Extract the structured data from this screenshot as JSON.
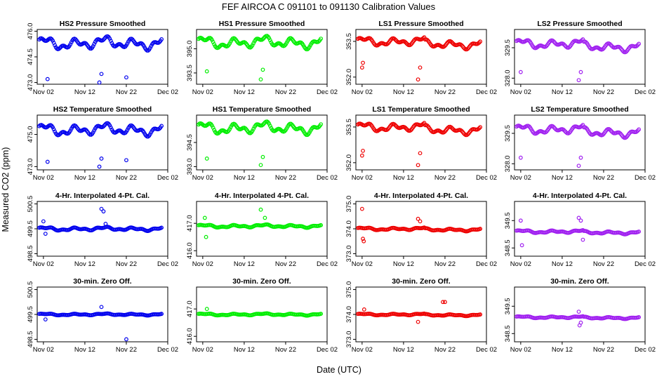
{
  "figure": {
    "title": "FEF   AIRCOA C   091101 to 091130   Calibration Values",
    "xlabel": "Date (UTC)",
    "ylabel": "Measured CO2 (ppm)"
  },
  "x_tick_labels": [
    "Nov 02",
    "Nov 12",
    "Nov 22",
    "Dec 02"
  ],
  "colors": {
    "HS2": "#0000ee",
    "HS1": "#00ee00",
    "LS1": "#ee0000",
    "LS2": "#a020f0"
  },
  "chart_data": [
    {
      "id": "hs2-pressure",
      "type": "scatter",
      "title": "HS2 Pressure Smoothed",
      "series": "HS2",
      "ylim": [
        472.9,
        476.1
      ],
      "yticks": [
        "473.0",
        "474.5",
        "476.0"
      ],
      "base": 475.3,
      "amp": 0.4,
      "outliers": [
        [
          2,
          473.2
        ],
        [
          14.5,
          473.0
        ],
        [
          15,
          473.5
        ],
        [
          21,
          473.3
        ]
      ]
    },
    {
      "id": "hs1-pressure",
      "type": "scatter",
      "title": "HS1 Pressure Smoothed",
      "series": "HS1",
      "ylim": [
        392.8,
        396.2
      ],
      "yticks": [
        "393.5",
        "395.0"
      ],
      "base": 395.4,
      "amp": 0.4,
      "outliers": [
        [
          2,
          393.6
        ],
        [
          15,
          393.1
        ],
        [
          15.5,
          393.7
        ]
      ]
    },
    {
      "id": "ls1-pressure",
      "type": "scatter",
      "title": "LS1 Pressure Smoothed",
      "series": "LS1",
      "ylim": [
        351.7,
        354.0
      ],
      "yticks": [
        "352.0",
        "353.5"
      ],
      "base": 353.5,
      "amp": 0.2,
      "outliers": [
        [
          1,
          352.4
        ],
        [
          1.2,
          352.6
        ],
        [
          14.5,
          351.9
        ],
        [
          15,
          352.4
        ]
      ]
    },
    {
      "id": "ls2-pressure",
      "type": "scatter",
      "title": "LS2 Pressure Smoothed",
      "series": "LS2",
      "ylim": [
        327.7,
        330.4
      ],
      "yticks": [
        "328.0",
        "329.5"
      ],
      "base": 329.7,
      "amp": 0.25,
      "outliers": [
        [
          1,
          328.3
        ],
        [
          15,
          327.9
        ],
        [
          15.5,
          328.3
        ]
      ]
    },
    {
      "id": "hs2-temperature",
      "type": "scatter",
      "title": "HS2 Temperature Smoothed",
      "series": "HS2",
      "ylim": [
        472.8,
        476.2
      ],
      "yticks": [
        "473.0",
        "475.0"
      ],
      "base": 475.3,
      "amp": 0.4,
      "outliers": [
        [
          2,
          473.3
        ],
        [
          14.5,
          473.0
        ],
        [
          15,
          473.5
        ],
        [
          21,
          473.4
        ]
      ]
    },
    {
      "id": "hs1-temperature",
      "type": "scatter",
      "title": "HS1 Temperature Smoothed",
      "series": "HS1",
      "ylim": [
        392.8,
        396.2
      ],
      "yticks": [
        "393.0",
        "394.5"
      ],
      "base": 395.4,
      "amp": 0.4,
      "outliers": [
        [
          2,
          393.5
        ],
        [
          15,
          393.1
        ],
        [
          15.5,
          393.6
        ]
      ]
    },
    {
      "id": "ls1-temperature",
      "type": "scatter",
      "title": "LS1 Temperature Smoothed",
      "series": "LS1",
      "ylim": [
        351.7,
        354.0
      ],
      "yticks": [
        "352.0",
        "353.5"
      ],
      "base": 353.5,
      "amp": 0.2,
      "outliers": [
        [
          1,
          352.3
        ],
        [
          1.2,
          352.5
        ],
        [
          14.5,
          351.9
        ],
        [
          15,
          352.4
        ]
      ]
    },
    {
      "id": "ls2-temperature",
      "type": "scatter",
      "title": "LS2 Temperature Smoothed",
      "series": "LS2",
      "ylim": [
        327.7,
        330.4
      ],
      "yticks": [
        "328.0",
        "329.5"
      ],
      "base": 329.7,
      "amp": 0.25,
      "outliers": [
        [
          1,
          328.3
        ],
        [
          15,
          327.9
        ],
        [
          15.5,
          328.3
        ]
      ]
    },
    {
      "id": "hs2-interp",
      "type": "scatter",
      "title": "4-Hr. Interpolated 4-Pt. Cal.",
      "series": "HS2",
      "ylim": [
        498.4,
        500.6
      ],
      "yticks": [
        "498.5",
        "499.5",
        "500.5"
      ],
      "base": 499.5,
      "amp": 0.08,
      "outliers": [
        [
          1,
          499.8
        ],
        [
          1.5,
          499.3
        ],
        [
          15,
          500.3
        ],
        [
          15.5,
          500.2
        ],
        [
          16,
          499.7
        ]
      ]
    },
    {
      "id": "hs1-interp",
      "type": "scatter",
      "title": "4-Hr. Interpolated 4-Pt. Cal.",
      "series": "HS1",
      "ylim": [
        415.8,
        417.8
      ],
      "yticks": [
        "416.0",
        "417.0"
      ],
      "base": 416.9,
      "amp": 0.06,
      "outliers": [
        [
          1.5,
          417.2
        ],
        [
          1.8,
          416.5
        ],
        [
          15,
          417.5
        ],
        [
          16,
          417.2
        ]
      ]
    },
    {
      "id": "ls1-interp",
      "type": "scatter",
      "title": "4-Hr. Interpolated 4-Pt. Cal.",
      "series": "LS1",
      "ylim": [
        372.9,
        375.1
      ],
      "yticks": [
        "373.0",
        "374.0",
        "375.0"
      ],
      "base": 374.0,
      "amp": 0.06,
      "outliers": [
        [
          1,
          374.8
        ],
        [
          1.2,
          373.6
        ],
        [
          1.4,
          373.5
        ],
        [
          14.5,
          374.4
        ],
        [
          15,
          374.3
        ]
      ]
    },
    {
      "id": "ls2-interp",
      "type": "scatter",
      "title": "4-Hr. Interpolated 4-Pt. Cal.",
      "series": "LS2",
      "ylim": [
        348.2,
        350.2
      ],
      "yticks": [
        "348.5",
        "349.5"
      ],
      "base": 349.1,
      "amp": 0.06,
      "outliers": [
        [
          1,
          349.5
        ],
        [
          1.3,
          348.6
        ],
        [
          15,
          349.6
        ],
        [
          15.5,
          349.5
        ],
        [
          16,
          348.8
        ]
      ]
    },
    {
      "id": "hs2-zero",
      "type": "scatter",
      "title": "30-min. Zero Off.",
      "series": "HS2",
      "ylim": [
        498.4,
        500.6
      ],
      "yticks": [
        "498.5",
        "499.5",
        "500.5"
      ],
      "base": 499.5,
      "amp": 0.04,
      "outliers": [
        [
          1.5,
          499.3
        ],
        [
          15,
          499.8
        ],
        [
          21,
          498.5
        ]
      ]
    },
    {
      "id": "hs1-zero",
      "type": "scatter",
      "title": "30-min. Zero Off.",
      "series": "HS1",
      "ylim": [
        415.8,
        417.8
      ],
      "yticks": [
        "416.0",
        "417.0"
      ],
      "base": 416.8,
      "amp": 0.04,
      "outliers": [
        [
          2,
          417.0
        ]
      ]
    },
    {
      "id": "ls1-zero",
      "type": "scatter",
      "title": "30-min. Zero Off.",
      "series": "LS1",
      "ylim": [
        372.9,
        375.1
      ],
      "yticks": [
        "373.0",
        "374.0",
        "375.0"
      ],
      "base": 374.0,
      "amp": 0.04,
      "outliers": [
        [
          1.5,
          374.2
        ],
        [
          14.5,
          373.7
        ],
        [
          20.5,
          374.5
        ],
        [
          21,
          374.5
        ]
      ]
    },
    {
      "id": "ls2-zero",
      "type": "scatter",
      "title": "30-min. Zero Off.",
      "series": "LS2",
      "ylim": [
        348.2,
        350.2
      ],
      "yticks": [
        "348.5",
        "349.5"
      ],
      "base": 349.1,
      "amp": 0.04,
      "outliers": [
        [
          15,
          349.3
        ],
        [
          15.2,
          348.8
        ],
        [
          15.5,
          348.9
        ]
      ]
    }
  ]
}
